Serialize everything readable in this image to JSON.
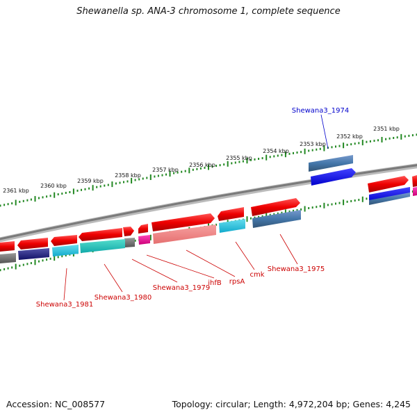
{
  "title": "Shewanella sp. ANA-3 chromosome 1, complete sequence",
  "footer": {
    "accession": "Accession: NC_008577",
    "topology": "Topology: circular; Length: 4,972,204 bp; Genes: 4,245"
  },
  "colors": {
    "forward_gene": "#ee1111",
    "reverse_gene": "#ee1111",
    "backbone": "#888888",
    "tick": "#228822",
    "label_red": "#cc0000",
    "label_blue": "#0000cc",
    "cog_blue": "#4477aa",
    "cog_cyan": "#11bbdd",
    "cog_pink": "#ee2299",
    "cog_gray": "#666666",
    "cog_navy": "#222288"
  },
  "scale": {
    "unit": "kbp",
    "ticks": [
      {
        "kbp": 2351,
        "label": "2351 kbp"
      },
      {
        "kbp": 2352,
        "label": "2352 kbp"
      },
      {
        "kbp": 2353,
        "label": "2353 kbp"
      },
      {
        "kbp": 2354,
        "label": "2354 kbp"
      },
      {
        "kbp": 2355,
        "label": "2355 kbp"
      },
      {
        "kbp": 2356,
        "label": "2356 kbp"
      },
      {
        "kbp": 2357,
        "label": "2357 kbp"
      },
      {
        "kbp": 2358,
        "label": "2358 kbp"
      },
      {
        "kbp": 2359,
        "label": "2359 kbp"
      },
      {
        "kbp": 2360,
        "label": "2360 kbp"
      },
      {
        "kbp": 2361,
        "label": "2361 kbp"
      }
    ]
  },
  "gene_labels": [
    {
      "name": "Shewana3_1974",
      "color": "#0000cc"
    },
    {
      "name": "Shewana3_1975",
      "color": "#cc0000"
    },
    {
      "name": "cmk",
      "color": "#cc0000"
    },
    {
      "name": "rpsA",
      "color": "#cc0000"
    },
    {
      "name": "ihfB",
      "color": "#cc0000"
    },
    {
      "name": "Shewana3_1979",
      "color": "#cc0000"
    },
    {
      "name": "Shewana3_1980",
      "color": "#cc0000"
    },
    {
      "name": "Shewana3_1981",
      "color": "#cc0000"
    }
  ]
}
